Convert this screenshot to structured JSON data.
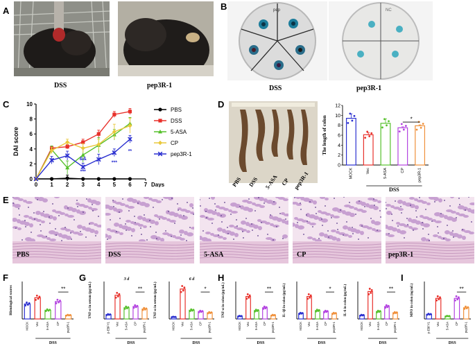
{
  "panel_letters": [
    "A",
    "B",
    "C",
    "D",
    "E",
    "F",
    "G",
    "H",
    "I"
  ],
  "panel_a": {
    "captions": [
      "DSS",
      "pep3R-1"
    ]
  },
  "panel_b": {
    "captions": [
      "DSS",
      "pep3R-1"
    ],
    "dish_labels": [
      "pep",
      "NC"
    ]
  },
  "panel_c": {
    "chart_data": {
      "type": "line",
      "ylabel": "DAI score",
      "xlabel": "Days",
      "x": [
        0,
        1,
        2,
        3,
        4,
        5,
        6
      ],
      "xlim": [
        0,
        7
      ],
      "ylim": [
        0,
        10
      ],
      "yticks": [
        "0",
        "2",
        "4",
        "6",
        "8",
        "10"
      ],
      "xticks": [
        "0",
        "1",
        "2",
        "3",
        "4",
        "5",
        "6",
        "7"
      ],
      "series": [
        {
          "name": "PBS",
          "color": "#000000",
          "marker": "circle",
          "values": [
            0,
            0,
            0.1,
            0,
            0,
            0,
            0
          ],
          "err": [
            0,
            0,
            0.4,
            0,
            0,
            0,
            0
          ]
        },
        {
          "name": "DSS",
          "color": "#e8302a",
          "marker": "square",
          "values": [
            0,
            4.1,
            4.3,
            4.9,
            6.0,
            8.6,
            9.0
          ],
          "err": [
            0,
            0.3,
            0.3,
            0.4,
            0.5,
            0.4,
            0.4
          ]
        },
        {
          "name": "5-ASA",
          "color": "#56c02b",
          "marker": "triangle",
          "values": [
            0,
            3.9,
            1.5,
            3.2,
            4.5,
            5.9,
            7.4
          ],
          "err": [
            0,
            0.5,
            0.9,
            1.0,
            1.0,
            0.7,
            0.8
          ]
        },
        {
          "name": "CP",
          "color": "#e9c83c",
          "marker": "diamond",
          "values": [
            0,
            3.8,
            4.9,
            4.1,
            4.6,
            6.3,
            7.1
          ],
          "err": [
            0,
            0.4,
            0.4,
            0.6,
            0.7,
            1.0,
            1.0
          ]
        },
        {
          "name": "pep3R-1",
          "color": "#2a2fd0",
          "marker": "cross",
          "values": [
            0,
            2.5,
            3.1,
            1.6,
            2.6,
            3.5,
            5.3
          ],
          "err": [
            0,
            0.5,
            0.6,
            0.5,
            0.7,
            0.5,
            0.5
          ]
        }
      ],
      "annotations": [
        "***",
        "&&",
        "***",
        "**"
      ]
    }
  },
  "panel_d": {
    "photo_labels": [
      "PBS",
      "DSS",
      "5-ASA",
      "CP",
      "pep3R-1"
    ],
    "chart_data": {
      "type": "bar",
      "ylabel": "The length of colon",
      "categories": [
        "MOCK",
        "Vec",
        "5-ASA",
        "CP",
        "pep3R-1"
      ],
      "values": [
        9.4,
        6.1,
        8.4,
        7.5,
        7.9
      ],
      "err": [
        0.9,
        0.4,
        0.9,
        0.2,
        0.2
      ],
      "colors": [
        "#2a2fd0",
        "#e8302a",
        "#56c02b",
        "#b342e0",
        "#f0903a"
      ],
      "ylim": [
        0,
        12
      ],
      "yticks": [
        "0",
        "2",
        "4",
        "6",
        "8",
        "10",
        "12"
      ],
      "group_label": "DSS",
      "significance": "*"
    }
  },
  "panel_e": {
    "captions": [
      "PBS",
      "DSS",
      "5-ASA",
      "CP",
      "pep3R-1"
    ]
  },
  "panel_f": {
    "chart_data": {
      "type": "bar",
      "ylabel": "Histological scores",
      "categories": [
        "MOCK",
        "Vec",
        "5-ASA",
        "CP",
        "pep3R-1"
      ],
      "values": [
        6.0,
        8.5,
        3.5,
        7.0,
        1.5
      ],
      "colors": [
        "#2a2fd0",
        "#e8302a",
        "#56c02b",
        "#b342e0",
        "#f0903a"
      ],
      "ylim": [
        0,
        15
      ],
      "group_label": "DSS",
      "significance": "**"
    }
  },
  "panel_g": {
    "chart_data": [
      {
        "type": "bar",
        "title": "3 d",
        "ylabel": "TNF-α in serum (pg/mL)",
        "categories": [
          "p-EBFY1",
          "Vec",
          "5-ASA",
          "CP",
          "pep3R-1"
        ],
        "values": [
          7,
          38,
          18,
          20,
          16
        ],
        "colors": [
          "#2a2fd0",
          "#e8302a",
          "#56c02b",
          "#b342e0",
          "#f0903a"
        ],
        "ylim": [
          0,
          60
        ],
        "group_label": "DSS",
        "significance": "**"
      },
      {
        "type": "bar",
        "title": "6 d",
        "ylabel": "TNF-α in serum (pg/mL)",
        "categories": [
          "MOCK",
          "Vec",
          "5-ASA",
          "CP",
          "pep3R-1"
        ],
        "values": [
          8,
          120,
          35,
          30,
          25
        ],
        "colors": [
          "#2a2fd0",
          "#e8302a",
          "#56c02b",
          "#b342e0",
          "#f0903a"
        ],
        "ylim": [
          0,
          150
        ],
        "group_label": "DSS",
        "significance": "*"
      }
    ]
  },
  "panel_h": {
    "chart_data": [
      {
        "type": "bar",
        "ylabel": "TNF-α in colon (pg/mL)",
        "categories": [
          "MOCK",
          "Vec",
          "5-ASA",
          "CP",
          "pep3R-1"
        ],
        "values": [
          150,
          1200,
          450,
          600,
          200
        ],
        "colors": [
          "#2a2fd0",
          "#e8302a",
          "#56c02b",
          "#b342e0",
          "#f0903a"
        ],
        "ylim": [
          0,
          2000
        ],
        "group_label": "DSS",
        "significance": "**"
      },
      {
        "type": "bar",
        "ylabel": "IL-1β in colon (pg/mL)",
        "categories": [
          "MOCK",
          "Vec",
          "5-ASA",
          "CP",
          "pep3R-1"
        ],
        "values": [
          300,
          1200,
          450,
          400,
          300
        ],
        "colors": [
          "#2a2fd0",
          "#e8302a",
          "#56c02b",
          "#b342e0",
          "#f0903a"
        ],
        "ylim": [
          0,
          2000
        ],
        "group_label": "DSS",
        "significance": "*"
      },
      {
        "type": "bar",
        "ylabel": "IL-6 in colon (pg/mL)",
        "categories": [
          "MOCK",
          "Vec",
          "5-ASA",
          "CP",
          "pep3R-1"
        ],
        "values": [
          150,
          1100,
          300,
          500,
          250
        ],
        "colors": [
          "#2a2fd0",
          "#e8302a",
          "#56c02b",
          "#b342e0",
          "#f0903a"
        ],
        "ylim": [
          0,
          1500
        ],
        "group_label": "DSS",
        "significance": "**"
      }
    ]
  },
  "panel_i": {
    "chart_data": {
      "type": "bar",
      "ylabel": "MPO in colon (ng/mL)",
      "categories": [
        "p-EBFY1",
        "Vec",
        "5-ASA",
        "CP",
        "pep3R-1"
      ],
      "values": [
        5,
        22,
        3,
        22,
        12
      ],
      "colors": [
        "#2a2fd0",
        "#e8302a",
        "#56c02b",
        "#b342e0",
        "#f0903a"
      ],
      "ylim": [
        0,
        40
      ],
      "group_label": "DSS",
      "significance": "**"
    }
  }
}
